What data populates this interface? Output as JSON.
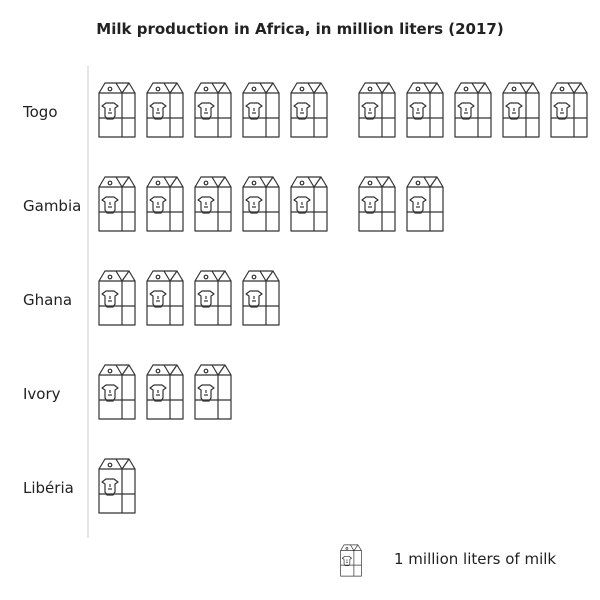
{
  "chart_data": {
    "type": "pictograph",
    "title": "Milk production in Africa, in million liters (2017)",
    "categories": [
      "Togo",
      "Gambia",
      "Ghana",
      "Ivory",
      "Libéria"
    ],
    "values": [
      10,
      7,
      4,
      3,
      1
    ],
    "unit": "1 million liters of milk",
    "icon": "milk-carton-icon",
    "colors": {
      "stroke": "#333333",
      "axis": "#cccccc",
      "text": "#222222"
    }
  }
}
